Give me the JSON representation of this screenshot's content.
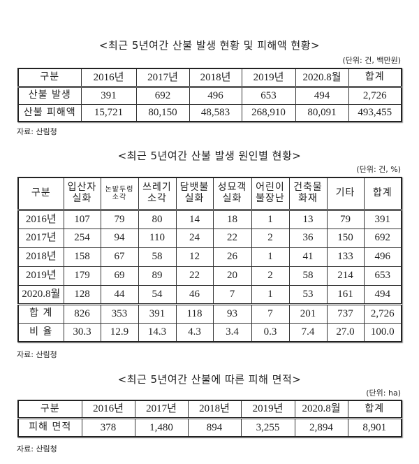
{
  "table1": {
    "title": "<최근 5년여간 산불 발생 현황 및 피해액 현황>",
    "unit": "(단위: 건, 백만원)",
    "headers": [
      "구분",
      "2016년",
      "2017년",
      "2018년",
      "2019년",
      "2020.8월",
      "합계"
    ],
    "rows": [
      [
        "산불 발생",
        "391",
        "692",
        "496",
        "653",
        "494",
        "2,726"
      ],
      [
        "산불 피해액",
        "15,721",
        "80,150",
        "48,583",
        "268,910",
        "80,091",
        "493,455"
      ]
    ],
    "source": "자료: 산림청"
  },
  "table2": {
    "title": "<최근 5년여간 산불 발생 원인별 현황>",
    "unit": "(단위: 건, %)",
    "headers": [
      "구분",
      "입산자\n실화",
      "논밭두렁\n소각",
      "쓰레기\n소각",
      "담뱃불\n실화",
      "성묘객\n실화",
      "어린이\n불장난",
      "건축물\n화재",
      "기타",
      "합계"
    ],
    "rows": [
      [
        "2016년",
        "107",
        "79",
        "80",
        "14",
        "18",
        "1",
        "13",
        "79",
        "391"
      ],
      [
        "2017년",
        "254",
        "94",
        "110",
        "24",
        "22",
        "2",
        "36",
        "150",
        "692"
      ],
      [
        "2018년",
        "158",
        "67",
        "58",
        "12",
        "26",
        "1",
        "41",
        "133",
        "496"
      ],
      [
        "2019년",
        "179",
        "69",
        "89",
        "22",
        "20",
        "2",
        "58",
        "214",
        "653"
      ],
      [
        "2020.8월",
        "128",
        "44",
        "54",
        "46",
        "7",
        "1",
        "53",
        "161",
        "494"
      ],
      [
        "합 계",
        "826",
        "353",
        "391",
        "118",
        "93",
        "7",
        "201",
        "737",
        "2,726"
      ],
      [
        "비 율",
        "30.3",
        "12.9",
        "14.3",
        "4.3",
        "3.4",
        "0.3",
        "7.4",
        "27.0",
        "100.0"
      ]
    ],
    "source": "자료: 산림청"
  },
  "table3": {
    "title": "<최근 5년여간 산불에 따른 피해 면적>",
    "unit": "(단위: ha)",
    "headers": [
      "구분",
      "2016년",
      "2017년",
      "2018년",
      "2019년",
      "2020.8월",
      "합계"
    ],
    "rows": [
      [
        "피해 면적",
        "378",
        "1,480",
        "894",
        "3,255",
        "2,894",
        "8,901"
      ]
    ],
    "source": "자료: 산림청"
  }
}
